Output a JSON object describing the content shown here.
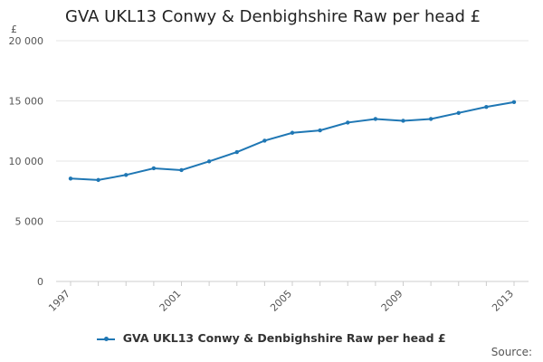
{
  "title": "GVA UKL13 Conwy & Denbighshire Raw per head £",
  "source_label": "Source:",
  "colors": {
    "series": "#1f77b4"
  },
  "chart_data": {
    "type": "line",
    "title": "GVA UKL13 Conwy & Denbighshire Raw per head £",
    "ylabel": "£",
    "xlabel": "",
    "x": [
      1997,
      1998,
      1999,
      2000,
      2001,
      2002,
      2003,
      2004,
      2005,
      2006,
      2007,
      2008,
      2009,
      2010,
      2011,
      2012,
      2013
    ],
    "xticks": [
      "1997",
      "2001",
      "2005",
      "2009",
      "2013"
    ],
    "yticks": [
      "0",
      "5 000",
      "10 000",
      "15 000",
      "20 000"
    ],
    "ylim": [
      0,
      20000
    ],
    "grid": true,
    "legend_position": "bottom",
    "series": [
      {
        "name": "GVA UKL13 Conwy & Denbighshire Raw per head £",
        "values": [
          8550,
          8430,
          8850,
          9400,
          9250,
          9980,
          10750,
          11700,
          12350,
          12550,
          13200,
          13500,
          13350,
          13500,
          14000,
          14500,
          14900
        ]
      }
    ]
  }
}
